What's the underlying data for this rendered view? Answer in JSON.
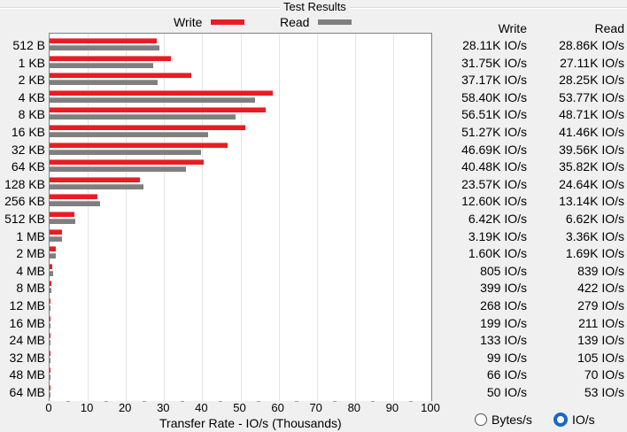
{
  "title": "Test Results",
  "legend": [
    {
      "label": "Write",
      "color": "#ea1c23"
    },
    {
      "label": "Read",
      "color": "#7f7f7f"
    }
  ],
  "table": {
    "headers": {
      "write": "Write",
      "read": "Read"
    },
    "rows": [
      {
        "size": "512 B",
        "write": "28.11K IO/s",
        "read": "28.86K IO/s"
      },
      {
        "size": "1 KB",
        "write": "31.75K IO/s",
        "read": "27.11K IO/s"
      },
      {
        "size": "2 KB",
        "write": "37.17K IO/s",
        "read": "28.25K IO/s"
      },
      {
        "size": "4 KB",
        "write": "58.40K IO/s",
        "read": "53.77K IO/s"
      },
      {
        "size": "8 KB",
        "write": "56.51K IO/s",
        "read": "48.71K IO/s"
      },
      {
        "size": "16 KB",
        "write": "51.27K IO/s",
        "read": "41.46K IO/s"
      },
      {
        "size": "32 KB",
        "write": "46.69K IO/s",
        "read": "39.56K IO/s"
      },
      {
        "size": "64 KB",
        "write": "40.48K IO/s",
        "read": "35.82K IO/s"
      },
      {
        "size": "128 KB",
        "write": "23.57K IO/s",
        "read": "24.64K IO/s"
      },
      {
        "size": "256 KB",
        "write": "12.60K IO/s",
        "read": "13.14K IO/s"
      },
      {
        "size": "512 KB",
        "write": "6.42K IO/s",
        "read": "6.62K IO/s"
      },
      {
        "size": "1 MB",
        "write": "3.19K IO/s",
        "read": "3.36K IO/s"
      },
      {
        "size": "2 MB",
        "write": "1.60K IO/s",
        "read": "1.69K IO/s"
      },
      {
        "size": "4 MB",
        "write": "805 IO/s",
        "read": "839 IO/s"
      },
      {
        "size": "8 MB",
        "write": "399 IO/s",
        "read": "422 IO/s"
      },
      {
        "size": "12 MB",
        "write": "268 IO/s",
        "read": "279 IO/s"
      },
      {
        "size": "16 MB",
        "write": "199 IO/s",
        "read": "211 IO/s"
      },
      {
        "size": "24 MB",
        "write": "133 IO/s",
        "read": "139 IO/s"
      },
      {
        "size": "32 MB",
        "write": "99 IO/s",
        "read": "105 IO/s"
      },
      {
        "size": "48 MB",
        "write": "66 IO/s",
        "read": "70 IO/s"
      },
      {
        "size": "64 MB",
        "write": "50 IO/s",
        "read": "53 IO/s"
      }
    ]
  },
  "units": {
    "options": [
      {
        "label": "Bytes/s",
        "selected": false
      },
      {
        "label": "IO/s",
        "selected": true
      }
    ]
  },
  "chart_data": {
    "type": "bar",
    "orientation": "horizontal",
    "title": "Test Results",
    "xlabel": "Transfer Rate - IO/s (Thousands)",
    "ylabel": "",
    "xlim": [
      0,
      100
    ],
    "xticks": [
      0,
      10,
      20,
      30,
      40,
      50,
      60,
      70,
      80,
      90,
      100
    ],
    "grid": true,
    "legend_position": "top",
    "categories": [
      "512 B",
      "1 KB",
      "2 KB",
      "4 KB",
      "8 KB",
      "16 KB",
      "32 KB",
      "64 KB",
      "128 KB",
      "256 KB",
      "512 KB",
      "1 MB",
      "2 MB",
      "4 MB",
      "8 MB",
      "12 MB",
      "16 MB",
      "24 MB",
      "32 MB",
      "48 MB",
      "64 MB"
    ],
    "series": [
      {
        "name": "Write",
        "color": "#ea1c23",
        "values": [
          28.11,
          31.75,
          37.17,
          58.4,
          56.51,
          51.27,
          46.69,
          40.48,
          23.57,
          12.6,
          6.42,
          3.19,
          1.6,
          0.805,
          0.399,
          0.268,
          0.199,
          0.133,
          0.099,
          0.066,
          0.05
        ]
      },
      {
        "name": "Read",
        "color": "#7f7f7f",
        "values": [
          28.86,
          27.11,
          28.25,
          53.77,
          48.71,
          41.46,
          39.56,
          35.82,
          24.64,
          13.14,
          6.62,
          3.36,
          1.69,
          0.839,
          0.422,
          0.279,
          0.211,
          0.139,
          0.105,
          0.07,
          0.053
        ]
      }
    ]
  }
}
